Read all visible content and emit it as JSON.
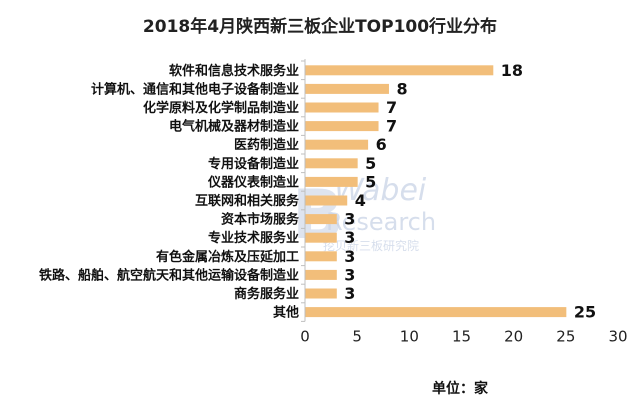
{
  "chart_data": {
    "type": "bar",
    "orientation": "horizontal",
    "title": "2018年4月陕西新三板企业TOP100行业分布",
    "xlabel": "单位：家",
    "ylabel": "",
    "xlim": [
      0,
      30
    ],
    "xticks": [
      0,
      5,
      10,
      15,
      20,
      25,
      30
    ],
    "grid": false,
    "bar_color": "#f2be7a",
    "categories": [
      "软件和信息技术服务业",
      "计算机、通信和其他电子设备制造业",
      "化学原料及化学制品制造业",
      "电气机械及器材制造业",
      "医药制造业",
      "专用设备制造业",
      "仪器仪表制造业",
      "互联网和相关服务",
      "资本市场服务",
      "专业技术服务业",
      "有色金属冶炼及压延加工",
      "铁路、船舶、航空航天和其他运输设备制造业",
      "商务服务业",
      "其他"
    ],
    "values": [
      18,
      8,
      7,
      7,
      6,
      5,
      5,
      4,
      3,
      3,
      3,
      3,
      3,
      25
    ]
  },
  "watermark": {
    "line1": "Wabei",
    "line2": "Research",
    "line3": "挖贝新三板研究院"
  }
}
